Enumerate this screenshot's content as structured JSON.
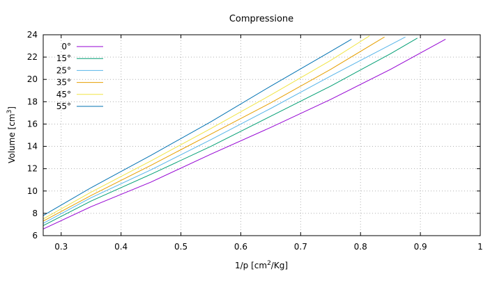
{
  "chart_data": {
    "type": "line",
    "title": "Compressione",
    "xlabel": {
      "text_prefix": "1/p [cm",
      "superscript": "2",
      "text_suffix": "/Kg]"
    },
    "ylabel": {
      "text_prefix": "Volume [cm",
      "superscript": "3",
      "text_suffix": "]"
    },
    "xlim": [
      0.27,
      1.0
    ],
    "ylim": [
      6,
      24
    ],
    "x_ticks": [
      0.3,
      0.4,
      0.5,
      0.6,
      0.7,
      0.8,
      0.9,
      1.0
    ],
    "x_tick_labels": [
      "0.3",
      "0.4",
      "0.5",
      "0.6",
      "0.7",
      "0.8",
      "0.9",
      "1"
    ],
    "y_ticks": [
      6,
      8,
      10,
      12,
      14,
      16,
      18,
      20,
      22,
      24
    ],
    "y_tick_labels": [
      "6",
      "8",
      "10",
      "12",
      "14",
      "16",
      "18",
      "20",
      "22",
      "24"
    ],
    "grid": true,
    "legend_position": "top-left",
    "series": [
      {
        "name": "0°",
        "color": "#9400d3",
        "x": [
          0.27,
          0.35,
          0.45,
          0.55,
          0.65,
          0.75,
          0.85,
          0.942
        ],
        "y": [
          6.6,
          8.6,
          10.8,
          13.3,
          15.7,
          18.2,
          20.9,
          23.6
        ]
      },
      {
        "name": "15°",
        "color": "#009e73",
        "x": [
          0.27,
          0.35,
          0.45,
          0.55,
          0.65,
          0.75,
          0.85,
          0.895
        ],
        "y": [
          6.9,
          9.1,
          11.5,
          14.0,
          16.7,
          19.4,
          22.3,
          23.7
        ]
      },
      {
        "name": "25°",
        "color": "#56b4e9",
        "x": [
          0.27,
          0.35,
          0.45,
          0.55,
          0.65,
          0.75,
          0.85,
          0.875
        ],
        "y": [
          7.1,
          9.4,
          11.9,
          14.6,
          17.4,
          20.3,
          23.1,
          23.8
        ]
      },
      {
        "name": "35°",
        "color": "#e69f00",
        "x": [
          0.27,
          0.35,
          0.45,
          0.55,
          0.65,
          0.75,
          0.84
        ],
        "y": [
          7.3,
          9.6,
          12.3,
          15.1,
          17.9,
          20.9,
          23.8
        ]
      },
      {
        "name": "45°",
        "color": "#f0e442",
        "x": [
          0.27,
          0.35,
          0.45,
          0.55,
          0.65,
          0.75,
          0.815
        ],
        "y": [
          7.5,
          9.9,
          12.7,
          15.6,
          18.6,
          21.7,
          23.9
        ]
      },
      {
        "name": "55°",
        "color": "#0072b2",
        "x": [
          0.27,
          0.35,
          0.45,
          0.55,
          0.65,
          0.75,
          0.785
        ],
        "y": [
          7.8,
          10.3,
          13.2,
          16.2,
          19.4,
          22.5,
          23.6
        ]
      }
    ]
  }
}
